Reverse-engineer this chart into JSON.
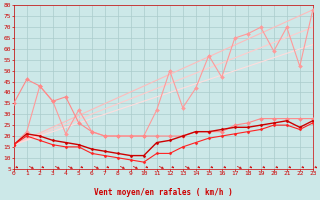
{
  "background_color": "#cce8e8",
  "grid_color": "#aacccc",
  "xlabel": "Vent moyen/en rafales ( km/h )",
  "xlabel_color": "#cc0000",
  "tick_color": "#cc0000",
  "x_ticks": [
    0,
    1,
    2,
    3,
    4,
    5,
    6,
    7,
    8,
    9,
    10,
    11,
    12,
    13,
    14,
    15,
    16,
    17,
    18,
    19,
    20,
    21,
    22,
    23
  ],
  "ylim": [
    5,
    80
  ],
  "xlim": [
    0,
    23
  ],
  "y_ticks": [
    5,
    10,
    15,
    20,
    25,
    30,
    35,
    40,
    45,
    50,
    55,
    60,
    65,
    70,
    75,
    80
  ],
  "series": [
    {
      "color": "#ffbbbb",
      "alpha": 1.0,
      "linewidth": 0.8,
      "marker": null,
      "data_x": [
        0,
        23
      ],
      "data_y": [
        16,
        78
      ]
    },
    {
      "color": "#ffcccc",
      "alpha": 1.0,
      "linewidth": 0.8,
      "marker": null,
      "data_x": [
        0,
        23
      ],
      "data_y": [
        16,
        70
      ]
    },
    {
      "color": "#ffdddd",
      "alpha": 1.0,
      "linewidth": 0.8,
      "marker": null,
      "data_x": [
        0,
        23
      ],
      "data_y": [
        16,
        62
      ]
    },
    {
      "color": "#ff9999",
      "alpha": 1.0,
      "linewidth": 0.8,
      "marker": "D",
      "markersize": 2.0,
      "data_x": [
        0,
        1,
        2,
        3,
        4,
        5,
        6,
        7,
        8,
        9,
        10,
        11,
        12,
        13,
        14,
        15,
        16,
        17,
        18,
        19,
        20,
        21,
        22,
        23
      ],
      "data_y": [
        16,
        22,
        43,
        36,
        21,
        32,
        22,
        20,
        20,
        20,
        20,
        32,
        50,
        33,
        42,
        57,
        47,
        65,
        67,
        70,
        59,
        70,
        52,
        78
      ]
    },
    {
      "color": "#ff8888",
      "alpha": 1.0,
      "linewidth": 0.8,
      "marker": "D",
      "markersize": 2.0,
      "data_x": [
        0,
        1,
        2,
        3,
        4,
        5,
        6,
        7,
        8,
        9,
        10,
        11,
        12,
        13,
        14,
        15,
        16,
        17,
        18,
        19,
        20,
        21,
        22,
        23
      ],
      "data_y": [
        35,
        46,
        43,
        36,
        38,
        26,
        22,
        20,
        20,
        20,
        20,
        20,
        20,
        20,
        22,
        22,
        22,
        25,
        26,
        28,
        28,
        28,
        28,
        28
      ]
    },
    {
      "color": "#cc0000",
      "alpha": 1.0,
      "linewidth": 1.0,
      "marker": "D",
      "markersize": 1.5,
      "data_x": [
        0,
        1,
        2,
        3,
        4,
        5,
        6,
        7,
        8,
        9,
        10,
        11,
        12,
        13,
        14,
        15,
        16,
        17,
        18,
        19,
        20,
        21,
        22,
        23
      ],
      "data_y": [
        16,
        21,
        20,
        18,
        17,
        16,
        14,
        13,
        12,
        11,
        11,
        17,
        18,
        20,
        22,
        22,
        23,
        24,
        24,
        25,
        26,
        27,
        24,
        27
      ]
    },
    {
      "color": "#ff2222",
      "alpha": 1.0,
      "linewidth": 0.8,
      "marker": "D",
      "markersize": 1.5,
      "data_x": [
        0,
        1,
        2,
        3,
        4,
        5,
        6,
        7,
        8,
        9,
        10,
        11,
        12,
        13,
        14,
        15,
        16,
        17,
        18,
        19,
        20,
        21,
        22,
        23
      ],
      "data_y": [
        16,
        20,
        18,
        16,
        15,
        15,
        12,
        11,
        10,
        9,
        8,
        12,
        12,
        15,
        17,
        19,
        20,
        21,
        22,
        23,
        25,
        25,
        23,
        26
      ]
    }
  ],
  "arrow_angles_deg": [
    45,
    90,
    45,
    90,
    90,
    45,
    90,
    45,
    90,
    90,
    135,
    90,
    135,
    90,
    135,
    135,
    135,
    90,
    135,
    135,
    135,
    135,
    135,
    135
  ]
}
